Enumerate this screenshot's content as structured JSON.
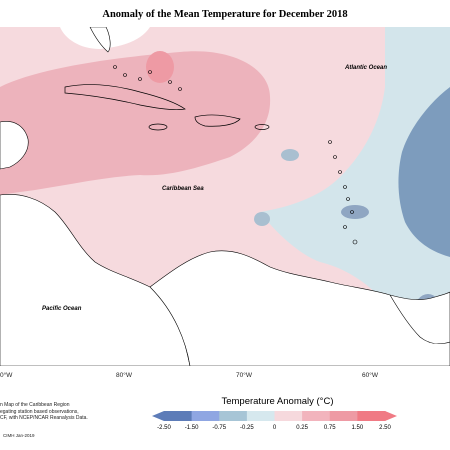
{
  "title": "Anomaly of the Mean Temperature for December 2018",
  "labels": {
    "atlantic": "Atlantic Ocean",
    "caribbean": "Caribbean Sea",
    "pacific": "Pacific Ocean"
  },
  "longitudes": [
    "80°W",
    "70°W",
    "60°W"
  ],
  "longitude_left_fragment": "0°W",
  "notes": "n Map of the Caribbean Region\negating station based observations,\nCF, with NCEP/NCAR Reanalysis Data.",
  "copyright": "CIMH Jan-2019",
  "legend": {
    "title": "Temperature Anomaly (°C)",
    "ticks": [
      "-2.50",
      "-1.50",
      "-0.75",
      "-0.25",
      "0",
      "0.25",
      "0.75",
      "1.50",
      "2.50"
    ],
    "colors": [
      "#5d7cb8",
      "#8fa6e2",
      "#a7c5d6",
      "#d6e8ee",
      "#f6d9dd",
      "#f2b4bd",
      "#ee9aa4",
      "#f07a84"
    ]
  }
}
